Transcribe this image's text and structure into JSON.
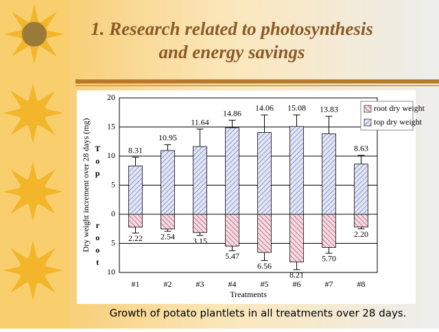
{
  "slide": {
    "title_line1": "1. Research related to photosynthesis",
    "title_line2": "and energy savings",
    "caption": "Growth of potato plantlets in all treatments over 28 days."
  },
  "chart_data": {
    "type": "bar",
    "y_label": "Dry weight increment over 28 days (mg)",
    "x_label": "Treatments",
    "annotations": [
      "Top",
      "root"
    ],
    "categories": [
      "#1",
      "#2",
      "#3",
      "#4",
      "#5",
      "#6",
      "#7",
      "#8"
    ],
    "series": [
      {
        "name": "root dry weight",
        "color": "#b03050",
        "values": [
          -2.22,
          -2.54,
          -3.15,
          -5.47,
          -6.56,
          -8.21,
          -5.7,
          -2.2
        ],
        "value_labels": [
          "2.22",
          "2.54",
          "3.15",
          "5.47",
          "6.56",
          "8.21",
          "5.70",
          "2.20"
        ],
        "errors": [
          1.0,
          0.4,
          0.5,
          0.8,
          1.4,
          1.3,
          1.0,
          0.3
        ]
      },
      {
        "name": "top dry weight",
        "color": "#5060b0",
        "values": [
          8.31,
          10.95,
          11.64,
          14.86,
          14.06,
          15.08,
          13.83,
          8.63
        ],
        "value_labels": [
          "8.31",
          "10.95",
          "11.64",
          "14.86",
          "14.06",
          "15.08",
          "13.83",
          "8.63"
        ],
        "errors": [
          1.5,
          1.0,
          3.0,
          1.3,
          3.0,
          2.0,
          3.0,
          1.5
        ]
      }
    ],
    "ylim": [
      -10,
      20
    ],
    "yticks": [
      {
        "value": -10,
        "label": "10"
      },
      {
        "value": -5,
        "label": "5"
      },
      0,
      5,
      10,
      15,
      20
    ],
    "grid": true,
    "legend": "top-right"
  }
}
